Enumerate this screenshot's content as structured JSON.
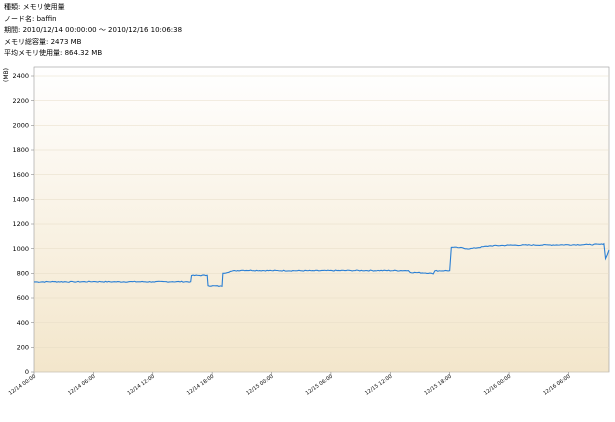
{
  "info": {
    "type_label": "種類",
    "type_value": "メモリ使用量",
    "node_label": "ノード名",
    "node_value": "baffin",
    "period_label": "期間",
    "period_value": "2010/12/14 00:00:00 〜 2010/12/16 10:06:38",
    "total_label": "メモリ総容量",
    "total_value": "2473 MB",
    "avg_label": "平均メモリ使用量",
    "avg_value": "864.32 MB"
  },
  "chart_data": {
    "type": "line",
    "title": "",
    "xlabel": "",
    "ylabel": "(MB)",
    "ylim": [
      0,
      2473
    ],
    "yticks": [
      0,
      200,
      400,
      600,
      800,
      1000,
      1200,
      1400,
      1600,
      1800,
      2000,
      2200,
      2400
    ],
    "xlim": [
      "2010/12/14 00:00",
      "2010/12/16 10:06"
    ],
    "xticks": [
      "12/14 00:00",
      "12/14 06:00",
      "12/14 12:00",
      "12/14 18:00",
      "12/15 00:00",
      "12/15 06:00",
      "12/15 12:00",
      "12/15 18:00",
      "12/16 00:00",
      "12/16 06:00"
    ],
    "grid": true,
    "series_color": "#2a7fd4",
    "series": [
      {
        "name": "",
        "x": [
          "12/14 00:00",
          "12/14 02:00",
          "12/14 04:00",
          "12/14 06:00",
          "12/14 08:00",
          "12/14 10:00",
          "12/14 12:00",
          "12/14 14:00",
          "12/14 15:50",
          "12/14 15:55",
          "12/14 17:30",
          "12/14 17:35",
          "12/14 19:00",
          "12/14 19:05",
          "12/14 20:00",
          "12/14 21:00",
          "12/15 00:00",
          "12/15 04:00",
          "12/15 08:00",
          "12/15 13:50",
          "12/15 14:00",
          "12/15 16:00",
          "12/15 16:20",
          "12/15 16:30",
          "12/15 18:00",
          "12/15 18:10",
          "12/15 19:00",
          "12/15 20:00",
          "12/15 22:00",
          "12/16 00:00",
          "12/16 04:00",
          "12/16 08:00",
          "12/16 09:30",
          "12/16 09:35",
          "12/16 09:45",
          "12/16 10:06"
        ],
        "values": [
          730,
          732,
          731,
          733,
          731,
          732,
          731,
          732,
          732,
          782,
          784,
          700,
          695,
          800,
          818,
          825,
          822,
          821,
          823,
          822,
          808,
          802,
          795,
          820,
          822,
          1010,
          1008,
          998,
          1022,
          1028,
          1030,
          1033,
          1035,
          1040,
          920,
          990
        ]
      }
    ]
  }
}
